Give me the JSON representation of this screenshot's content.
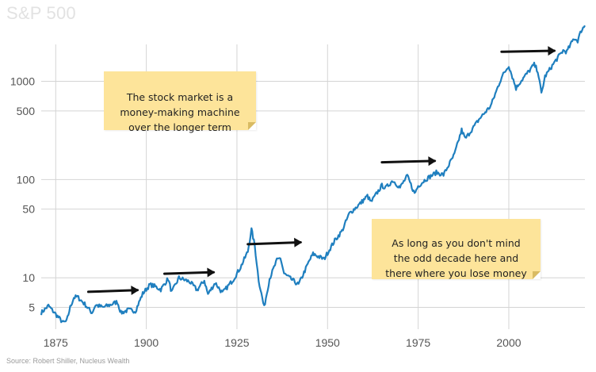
{
  "title": "S&P 500",
  "source": "Source: Robert Shiller, Nucleus Wealth",
  "colors": {
    "line": "#1f7fbf",
    "grid": "#d4d4d4",
    "note": "#fde49a",
    "arrow": "#111111"
  },
  "notes": [
    "The stock market is a\nmoney-making machine\nover the longer term",
    "As long as you don't mind\nthe odd decade here and\nthere where you lose money"
  ],
  "chart_data": {
    "type": "line",
    "title": "S&P 500",
    "xlabel": "",
    "ylabel": "",
    "scale": "log",
    "xlim": [
      1871,
      2021
    ],
    "ylim": [
      3,
      4000
    ],
    "x_ticks": [
      1875,
      1900,
      1925,
      1950,
      1975,
      2000
    ],
    "y_ticks": [
      5,
      10,
      50,
      100,
      500,
      1000
    ],
    "grid": true,
    "series": [
      {
        "values_x": [
          1871,
          1873,
          1874,
          1877,
          1878,
          1879,
          1880,
          1881,
          1883,
          1885,
          1886,
          1888,
          1890,
          1892,
          1893,
          1895,
          1897,
          1899,
          1901,
          1902,
          1904,
          1906,
          1907,
          1909,
          1912,
          1914,
          1916,
          1917,
          1919,
          1921,
          1924,
          1926,
          1928,
          1929,
          1929.9,
          1931,
          1932.5,
          1934,
          1936,
          1937,
          1938,
          1942,
          1945,
          1946,
          1949,
          1952,
          1954,
          1956,
          1959,
          1961,
          1962,
          1965,
          1966,
          1968,
          1970,
          1972,
          1974,
          1975,
          1977,
          1980,
          1982,
          1985,
          1987,
          1988,
          1990,
          1992,
          1995,
          1998,
          2000,
          2002,
          2003,
          2007,
          2008,
          2009,
          2010,
          2013,
          2015,
          2016,
          2018,
          2019,
          2020,
          2021
        ],
        "values_y": [
          4.4,
          5.2,
          4.7,
          3.5,
          3.6,
          5.0,
          6.3,
          6.4,
          5.4,
          4.4,
          5.3,
          5.0,
          5.3,
          5.7,
          4.4,
          4.7,
          4.6,
          6.9,
          8.5,
          8.3,
          7.6,
          9.8,
          7.1,
          10.0,
          9.1,
          7.5,
          9.4,
          6.8,
          8.9,
          7.0,
          9.6,
          12.8,
          18.5,
          31.0,
          21.5,
          9.5,
          5.0,
          9.8,
          15.0,
          16.0,
          11.0,
          8.5,
          15.0,
          17.5,
          15.5,
          24.0,
          30.0,
          45.0,
          57.0,
          68.0,
          59.0,
          87.0,
          82.0,
          98.0,
          83.0,
          109.0,
          72.0,
          86.0,
          100.0,
          118.0,
          112.0,
          180.0,
          320.0,
          260.0,
          330.0,
          420.0,
          560.0,
          1100.0,
          1450.0,
          850.0,
          970.0,
          1480.0,
          1280.0,
          750.0,
          1120.0,
          1640.0,
          2060.0,
          2000.0,
          2750.0,
          2600.0,
          3300.0,
          3700.0
        ]
      }
    ],
    "annotations": [
      {
        "type": "arrow",
        "from": [
          1884,
          7.2
        ],
        "to": [
          1898,
          7.5
        ]
      },
      {
        "type": "arrow",
        "from": [
          1905,
          11.0
        ],
        "to": [
          1919,
          11.4
        ]
      },
      {
        "type": "arrow",
        "from": [
          1928,
          22.0
        ],
        "to": [
          1943,
          23.0
        ]
      },
      {
        "type": "arrow",
        "from": [
          1965,
          150.0
        ],
        "to": [
          1980,
          155.0
        ]
      },
      {
        "type": "arrow",
        "from": [
          1998,
          2000.0
        ],
        "to": [
          2013,
          2050.0
        ]
      }
    ]
  }
}
